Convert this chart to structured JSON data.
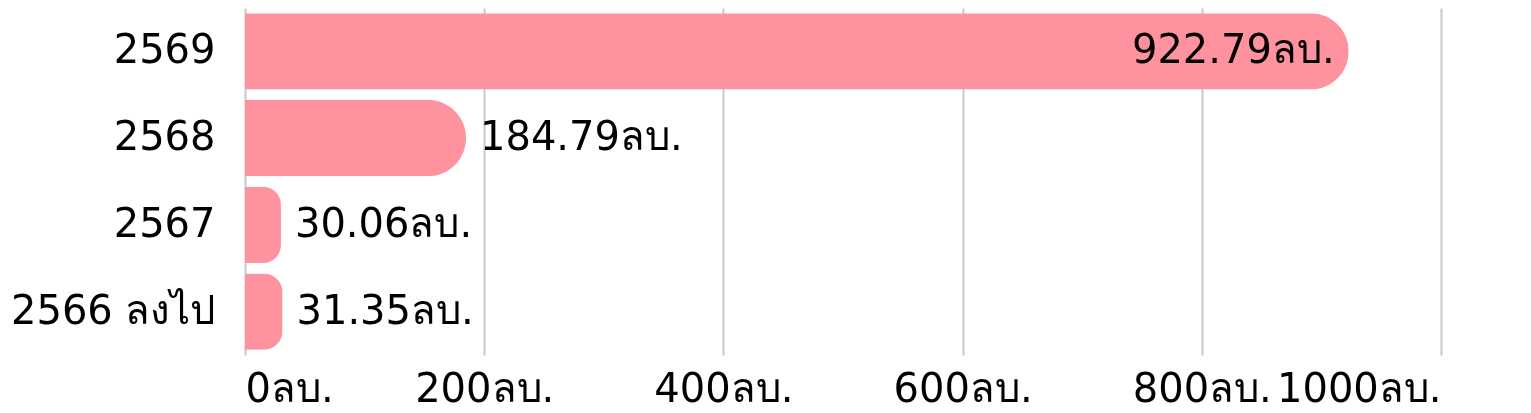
{
  "chart_data": {
    "type": "bar",
    "orientation": "horizontal",
    "categories": [
      "2569",
      "2568",
      "2567",
      "2566 ลงไป"
    ],
    "values": [
      922.79,
      184.79,
      30.06,
      31.35
    ],
    "value_labels": [
      "922.79ลบ.",
      "184.79ลบ.",
      "30.06ลบ.",
      "31.35ลบ."
    ],
    "color": "#ff929f",
    "xlim": [
      0,
      1000
    ],
    "xticks": [
      {
        "value": 0,
        "label": "0ลบ."
      },
      {
        "value": 200,
        "label": "200ลบ."
      },
      {
        "value": 400,
        "label": "400ลบ."
      },
      {
        "value": 600,
        "label": "600ลบ."
      },
      {
        "value": 800,
        "label": "800ลบ."
      },
      {
        "value": 1000,
        "label": "1000ลบ."
      }
    ],
    "grid": "x"
  }
}
